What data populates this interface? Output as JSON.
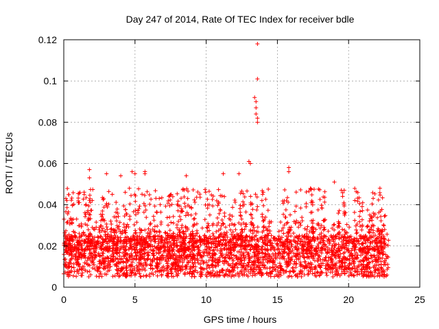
{
  "chart_data": {
    "type": "scatter",
    "title": "Day 247 of 2014, Rate Of TEC Index for receiver bdle",
    "xlabel": "GPS time / hours",
    "ylabel": "ROTI / TECUs",
    "xlim": [
      0,
      25
    ],
    "ylim": [
      0,
      0.12
    ],
    "x_ticks": [
      0,
      5,
      10,
      15,
      20,
      25
    ],
    "x_tick_labels": [
      "0",
      "5",
      "10",
      "15",
      "20",
      "25"
    ],
    "y_ticks": [
      0,
      0.02,
      0.04,
      0.06,
      0.08,
      0.1,
      0.12
    ],
    "y_tick_labels": [
      "0",
      "0.02",
      "0.04",
      "0.06",
      "0.08",
      "0.1",
      "0.12"
    ],
    "grid": true,
    "marker": "+",
    "marker_color": "#ff0000",
    "series": [
      {
        "name": "ROTI",
        "data_range_x": [
          0,
          22.8
        ],
        "baseline_band": [
          0.005,
          0.025
        ],
        "notable_points": [
          {
            "x": 1.8,
            "y": 0.057
          },
          {
            "x": 1.8,
            "y": 0.053
          },
          {
            "x": 3.0,
            "y": 0.055
          },
          {
            "x": 4.0,
            "y": 0.054
          },
          {
            "x": 4.8,
            "y": 0.056
          },
          {
            "x": 5.0,
            "y": 0.055
          },
          {
            "x": 5.7,
            "y": 0.056
          },
          {
            "x": 5.7,
            "y": 0.055
          },
          {
            "x": 8.6,
            "y": 0.054
          },
          {
            "x": 11.2,
            "y": 0.055
          },
          {
            "x": 12.3,
            "y": 0.055
          },
          {
            "x": 13.0,
            "y": 0.061
          },
          {
            "x": 13.1,
            "y": 0.06
          },
          {
            "x": 13.4,
            "y": 0.092
          },
          {
            "x": 13.5,
            "y": 0.09
          },
          {
            "x": 13.5,
            "y": 0.087
          },
          {
            "x": 13.5,
            "y": 0.084
          },
          {
            "x": 13.6,
            "y": 0.082
          },
          {
            "x": 13.6,
            "y": 0.08
          },
          {
            "x": 13.6,
            "y": 0.101
          },
          {
            "x": 13.6,
            "y": 0.118
          },
          {
            "x": 15.8,
            "y": 0.058
          },
          {
            "x": 15.8,
            "y": 0.056
          },
          {
            "x": 19.0,
            "y": 0.051
          },
          {
            "x": 22.2,
            "y": 0.048
          }
        ]
      }
    ]
  }
}
